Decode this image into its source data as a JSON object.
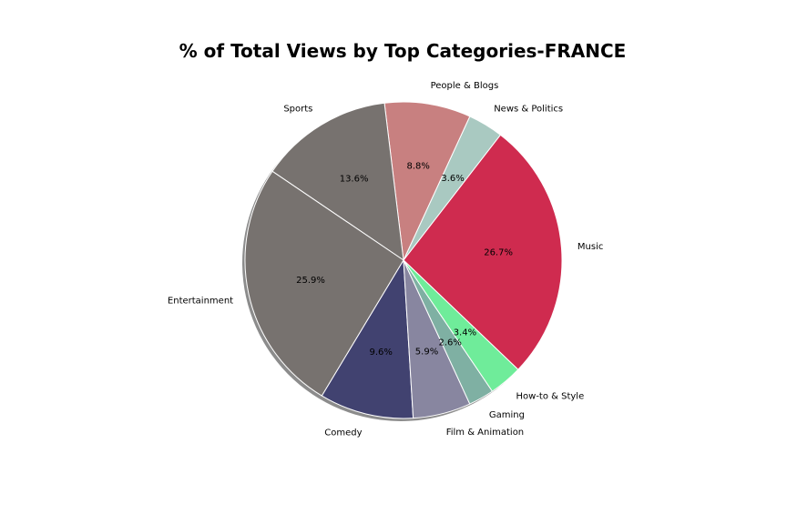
{
  "chart_data": {
    "type": "pie",
    "title": "% of Total Views by Top Categories-FRANCE",
    "categories": [
      "Music",
      "News & Politics",
      "People & Blogs",
      "Sports",
      "Entertainment",
      "Comedy",
      "Film & Animation",
      "Gaming",
      "How-to & Style"
    ],
    "values": [
      26.7,
      3.6,
      8.8,
      13.6,
      25.9,
      9.6,
      5.9,
      2.6,
      3.4
    ],
    "labels": [
      "26.7%",
      "3.6%",
      "8.8%",
      "13.6%",
      "25.9%",
      "9.6%",
      "5.9%",
      "2.6%",
      "3.4%"
    ],
    "colors": [
      "#cf2b4f",
      "#a9c9c1",
      "#c88080",
      "#77726f",
      "#77726f",
      "#414270",
      "#8886a0",
      "#7fb0a3",
      "#6fec9a"
    ],
    "shadow": true,
    "direction": "counterclockwise"
  }
}
